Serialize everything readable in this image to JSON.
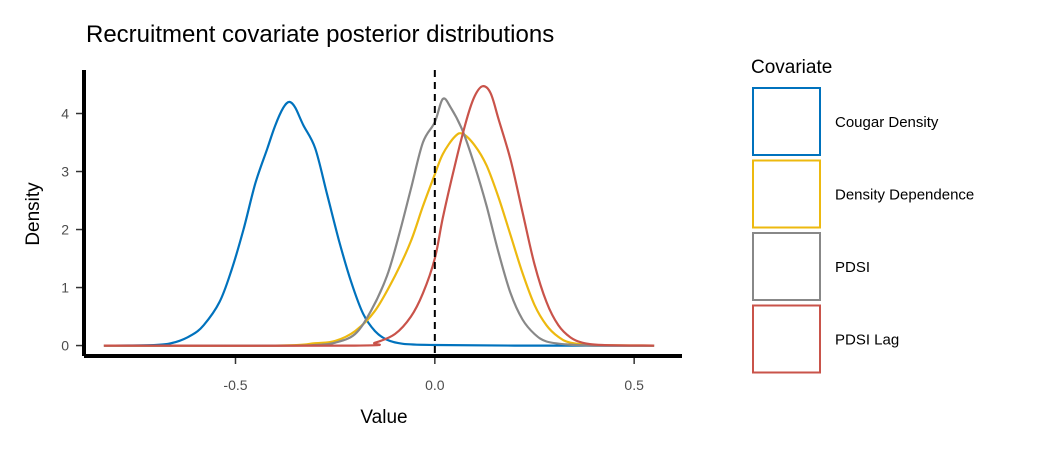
{
  "chart_data": {
    "type": "density",
    "title": "Recruitment covariate posterior distributions",
    "xlabel": "Value",
    "ylabel": "Density",
    "xlim": [
      -0.88,
      0.62
    ],
    "ylim": [
      -0.18,
      4.75
    ],
    "x_ticks": [
      -0.5,
      0.0,
      0.5
    ],
    "x_tick_labels": [
      "-0.5",
      "0.0",
      "0.5"
    ],
    "y_ticks": [
      0,
      1,
      2,
      3,
      4
    ],
    "y_tick_labels": [
      "0",
      "1",
      "2",
      "3",
      "4"
    ],
    "reference_line": {
      "x": 0,
      "style": "dashed"
    },
    "grid": false,
    "legend": {
      "title": "Covariate",
      "placement": "right"
    },
    "series": [
      {
        "name": "Cougar Density",
        "color": "#0072BD",
        "points": [
          [
            -0.83,
            0
          ],
          [
            -0.7,
            0.01
          ],
          [
            -0.65,
            0.06
          ],
          [
            -0.61,
            0.18
          ],
          [
            -0.58,
            0.35
          ],
          [
            -0.54,
            0.75
          ],
          [
            -0.51,
            1.3
          ],
          [
            -0.48,
            2.0
          ],
          [
            -0.45,
            2.8
          ],
          [
            -0.42,
            3.4
          ],
          [
            -0.4,
            3.8
          ],
          [
            -0.38,
            4.1
          ],
          [
            -0.365,
            4.2
          ],
          [
            -0.35,
            4.1
          ],
          [
            -0.33,
            3.8
          ],
          [
            -0.3,
            3.4
          ],
          [
            -0.27,
            2.6
          ],
          [
            -0.24,
            1.8
          ],
          [
            -0.21,
            1.1
          ],
          [
            -0.18,
            0.55
          ],
          [
            -0.15,
            0.25
          ],
          [
            -0.12,
            0.1
          ],
          [
            -0.08,
            0.03
          ],
          [
            0,
            0.01
          ],
          [
            0.2,
            0
          ],
          [
            0.55,
            0
          ]
        ]
      },
      {
        "name": "Density Dependence",
        "color": "#EDB90F",
        "points": [
          [
            -0.83,
            0
          ],
          [
            -0.4,
            0
          ],
          [
            -0.3,
            0.04
          ],
          [
            -0.25,
            0.08
          ],
          [
            -0.2,
            0.25
          ],
          [
            -0.15,
            0.6
          ],
          [
            -0.1,
            1.2
          ],
          [
            -0.06,
            1.8
          ],
          [
            -0.03,
            2.4
          ],
          [
            0,
            2.95
          ],
          [
            0.02,
            3.3
          ],
          [
            0.05,
            3.6
          ],
          [
            0.07,
            3.65
          ],
          [
            0.1,
            3.45
          ],
          [
            0.13,
            3.1
          ],
          [
            0.16,
            2.55
          ],
          [
            0.19,
            1.9
          ],
          [
            0.22,
            1.25
          ],
          [
            0.25,
            0.7
          ],
          [
            0.28,
            0.35
          ],
          [
            0.31,
            0.15
          ],
          [
            0.34,
            0.05
          ],
          [
            0.4,
            0.01
          ],
          [
            0.55,
            0
          ]
        ]
      },
      {
        "name": "PDSI",
        "color": "#888888",
        "points": [
          [
            -0.83,
            0
          ],
          [
            -0.4,
            0
          ],
          [
            -0.3,
            0.01
          ],
          [
            -0.25,
            0.05
          ],
          [
            -0.2,
            0.2
          ],
          [
            -0.16,
            0.6
          ],
          [
            -0.12,
            1.2
          ],
          [
            -0.09,
            1.9
          ],
          [
            -0.06,
            2.7
          ],
          [
            -0.03,
            3.5
          ],
          [
            0,
            3.85
          ],
          [
            0.02,
            4.25
          ],
          [
            0.04,
            4.1
          ],
          [
            0.07,
            3.7
          ],
          [
            0.1,
            3.1
          ],
          [
            0.13,
            2.4
          ],
          [
            0.16,
            1.6
          ],
          [
            0.19,
            0.9
          ],
          [
            0.22,
            0.45
          ],
          [
            0.25,
            0.2
          ],
          [
            0.28,
            0.07
          ],
          [
            0.33,
            0.02
          ],
          [
            0.4,
            0
          ],
          [
            0.55,
            0
          ]
        ]
      },
      {
        "name": "PDSI Lag",
        "color": "#C9534A",
        "points": [
          [
            -0.83,
            0
          ],
          [
            -0.2,
            0
          ],
          [
            -0.15,
            0.05
          ],
          [
            -0.1,
            0.2
          ],
          [
            -0.06,
            0.5
          ],
          [
            -0.03,
            0.9
          ],
          [
            0,
            1.5
          ],
          [
            0.02,
            2.2
          ],
          [
            0.05,
            3.1
          ],
          [
            0.08,
            3.9
          ],
          [
            0.1,
            4.3
          ],
          [
            0.12,
            4.47
          ],
          [
            0.14,
            4.35
          ],
          [
            0.16,
            3.9
          ],
          [
            0.19,
            3.2
          ],
          [
            0.22,
            2.3
          ],
          [
            0.25,
            1.4
          ],
          [
            0.28,
            0.75
          ],
          [
            0.31,
            0.35
          ],
          [
            0.34,
            0.14
          ],
          [
            0.37,
            0.05
          ],
          [
            0.42,
            0.01
          ],
          [
            0.55,
            0
          ]
        ]
      }
    ]
  }
}
